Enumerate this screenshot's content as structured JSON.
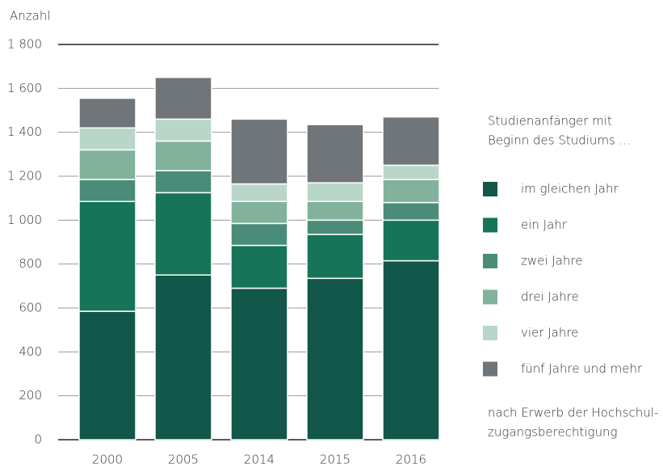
{
  "chart_data": {
    "type": "stacked_bar",
    "y_label": "Anzahl",
    "categories": [
      "2000",
      "2005",
      "2014",
      "2015",
      "2016"
    ],
    "series": [
      {
        "name": "im gleichen Jahr",
        "color": "#12574a",
        "values": [
          585,
          750,
          690,
          735,
          815
        ]
      },
      {
        "name": "ein Jahr",
        "color": "#167459",
        "values": [
          500,
          375,
          195,
          200,
          185
        ]
      },
      {
        "name": "zwei Jahre",
        "color": "#4a8c78",
        "values": [
          100,
          100,
          100,
          65,
          80
        ]
      },
      {
        "name": "drei Jahre",
        "color": "#82b19c",
        "values": [
          135,
          135,
          100,
          85,
          105
        ]
      },
      {
        "name": "vier Jahre",
        "color": "#b9d6cb",
        "values": [
          100,
          100,
          80,
          85,
          65
        ]
      },
      {
        "name": "fünf Jahre und mehr",
        "color": "#707579",
        "values": [
          135,
          190,
          295,
          265,
          220
        ]
      }
    ],
    "legend_title": [
      "Studienanfänger mit",
      "Beginn des Studiums ..."
    ],
    "note": [
      "nach Erwerb der Hochschul-",
      "zugangsberechtigung"
    ],
    "ylim": [
      0,
      1800
    ],
    "yticks": [
      0,
      200,
      400,
      600,
      800,
      {
        "value": 1000,
        "label": "1 000"
      },
      {
        "value": 1200,
        "label": "1 200"
      },
      {
        "value": 1400,
        "label": "1 400"
      },
      {
        "value": 1600,
        "label": "1 600"
      },
      {
        "value": 1800,
        "label": "1 800"
      }
    ],
    "grid": true
  }
}
